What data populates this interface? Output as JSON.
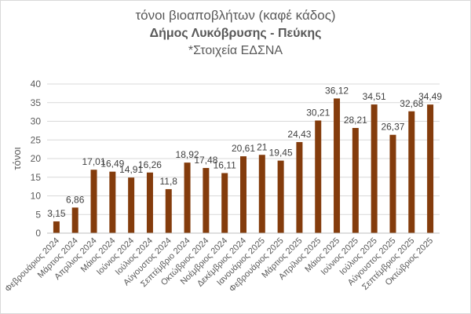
{
  "chart_data": {
    "type": "bar",
    "title": "τόνοι βιοαποβλήτων (καφέ κάδος)",
    "subtitle": "Δήμος Λυκόβρυσης - Πεύκης",
    "note": "*Στοιχεία ΕΔΣΝΑ",
    "ylabel": "τόνοι",
    "ylim": [
      0,
      40
    ],
    "yticks": [
      "0",
      "5",
      "10",
      "15",
      "20",
      "25",
      "30",
      "35",
      "40"
    ],
    "grid": true,
    "bar_color": "#843c0c",
    "categories": [
      "Φεβρουάριος 2024",
      "Μάρτιος 2024",
      "Απρίλιος 2024",
      "Μάιος 2024",
      "Ιούνιος 2024",
      "Ιούλιος 2024",
      "Αύγουστος 2024",
      "Σεπτέμβριο 2024",
      "Οκτώβριος 2024",
      "Νοέμβριος 2024",
      "Δεκέμβριος 2024",
      "Ιανουάριος 2025",
      "Φεβρουάριος 2025",
      "Μάρτιος 2025",
      "Απρίλιος 2025",
      "Μάιος 2025",
      "Ιούνιος 2025",
      "Ιούλιος 2025",
      "Αύγουστος 2025",
      "Σεπτέμβριος 2025",
      "Οκτώβριος 2025"
    ],
    "values": [
      3.15,
      6.86,
      17.01,
      16.49,
      14.91,
      16.26,
      11.8,
      18.92,
      17.48,
      16.11,
      20.61,
      21,
      19.45,
      24.43,
      30.21,
      36.12,
      28.21,
      34.51,
      26.37,
      32.68,
      34.49
    ],
    "data_labels": [
      "3,15",
      "6,86",
      "17,01",
      "16,49",
      "14,91",
      "16,26",
      "11,8",
      "18,92",
      "17,48",
      "16,11",
      "20,61",
      "21",
      "19,45",
      "24,43",
      "30,21",
      "36,12",
      "28,21",
      "34,51",
      "26,37",
      "32,68",
      "34,49"
    ]
  }
}
